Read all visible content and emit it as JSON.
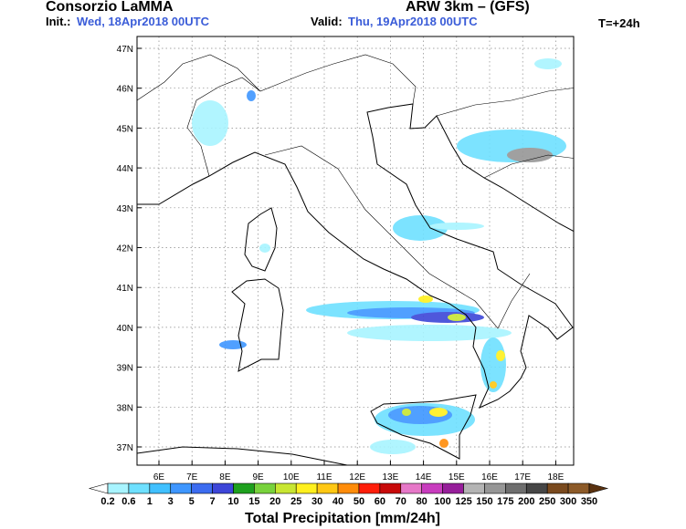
{
  "header": {
    "title": "Consorzio LaMMA",
    "model": "ARW 3km – (GFS)",
    "init_label": "Init.:",
    "init_date": "Wed, 18Apr2018 00UTC",
    "valid_label": "Valid:",
    "valid_date": "Thu, 19Apr2018 00UTC",
    "step": "T=+24h"
  },
  "map": {
    "lat_labels": [
      "47N",
      "46N",
      "45N",
      "44N",
      "43N",
      "42N",
      "41N",
      "40N",
      "39N",
      "38N",
      "37N"
    ],
    "lon_labels": [
      "6E",
      "7E",
      "8E",
      "9E",
      "10E",
      "11E",
      "12E",
      "13E",
      "14E",
      "15E",
      "16E",
      "17E",
      "18E"
    ]
  },
  "legend": {
    "title": "Total Precipitation [mm/24h]",
    "levels": [
      0.2,
      0.6,
      1,
      3,
      5,
      7,
      10,
      15,
      20,
      25,
      30,
      40,
      50,
      60,
      70,
      80,
      100,
      125,
      150,
      175,
      200,
      250,
      300,
      350
    ],
    "colors": [
      "#ffffff",
      "#a8f4ff",
      "#6ee0ff",
      "#40c0ff",
      "#3e96ff",
      "#3c6cf0",
      "#3d46d8",
      "#1ea01e",
      "#78d23c",
      "#c8e632",
      "#fff01e",
      "#ffc814",
      "#ff8c0a",
      "#ff1e0a",
      "#c80a0a",
      "#e678c8",
      "#c83cbe",
      "#961e9a",
      "#b4b4b4",
      "#969696",
      "#6e6e6e",
      "#464646",
      "#7a4a1e",
      "#8c5a28",
      "#5a3210"
    ]
  }
}
